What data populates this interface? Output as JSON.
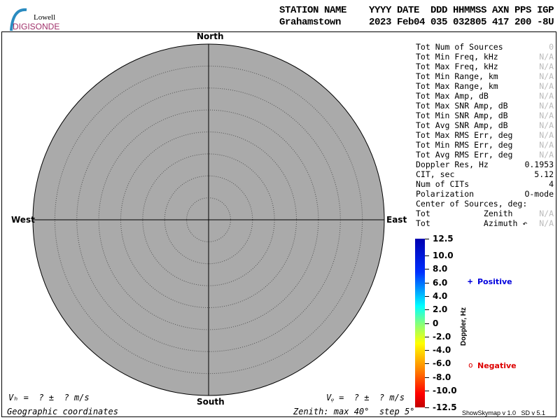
{
  "logo": {
    "line1": "Lowell",
    "line2": "DIGISONDE"
  },
  "header": {
    "labels": "STATION NAME    YYYY DATE  DDD HHMMSS AXN PPS IGP",
    "values": "Grahamstown     2023 Feb04 035 032805 417 200 -8U"
  },
  "directions": {
    "north": "North",
    "south": "South",
    "east": "East",
    "west": "West"
  },
  "stats": [
    {
      "label": "Tot Num of Sources",
      "value": "0",
      "na": true
    },
    {
      "label": "Tot Min Freq, kHz",
      "value": "N/A",
      "na": true
    },
    {
      "label": "Tot Max Freq, kHz",
      "value": "N/A",
      "na": true
    },
    {
      "label": "Tot Min Range, km",
      "value": "N/A",
      "na": true
    },
    {
      "label": "Tot Max Range, km",
      "value": "N/A",
      "na": true
    },
    {
      "label": "Tot Max Amp, dB",
      "value": "N/A",
      "na": true
    },
    {
      "label": "Tot Max SNR Amp, dB",
      "value": "N/A",
      "na": true
    },
    {
      "label": "Tot Min SNR Amp, dB",
      "value": "N/A",
      "na": true
    },
    {
      "label": "Tot Avg SNR Amp, dB",
      "value": "N/A",
      "na": true
    },
    {
      "label": "Tot Max RMS Err, deg",
      "value": "N/A",
      "na": true
    },
    {
      "label": "Tot Min RMS Err, deg",
      "value": "N/A",
      "na": true
    },
    {
      "label": "Tot Avg RMS Err, deg",
      "value": "N/A",
      "na": true
    },
    {
      "label": "Doppler Res, Hz",
      "value": "0.1953",
      "na": false
    },
    {
      "label": "CIT, sec",
      "value": "5.12",
      "na": false
    },
    {
      "label": "Num of CITs",
      "value": "4",
      "na": false
    },
    {
      "label": "Polarization",
      "value": "O-mode",
      "na": false
    },
    {
      "label": "Center of Sources, deg:",
      "value": "",
      "na": false
    },
    {
      "label": "Tot           Zenith",
      "value": "N/A",
      "na": true
    },
    {
      "label": "Tot           Azimuth ↶",
      "value": "N/A",
      "na": true
    }
  ],
  "colorbar": {
    "title": "Doppler, Hz",
    "ticks": [
      "12.5",
      "10.0",
      "8.0",
      "6.0",
      "4.0",
      "2.0",
      "0",
      "-2.0",
      "-4.0",
      "-6.0",
      "-8.0",
      "-10.0",
      "-12.5"
    ]
  },
  "legend": {
    "positive": "Positive",
    "positive_symbol": "+",
    "negative": "Negative",
    "negative_symbol": "o",
    "positive_color": "#0000dd",
    "negative_color": "#dd0000"
  },
  "footer": {
    "vh": "Vₕ =  ? ±  ? m/s",
    "vz": "Vᵩ =  ? ±  ? m/s",
    "coords": "Geographic coordinates",
    "zenith": "Zenith: max 40°  step 5°",
    "version": "ShowSkymap v 1.0   SD v 5.1"
  }
}
